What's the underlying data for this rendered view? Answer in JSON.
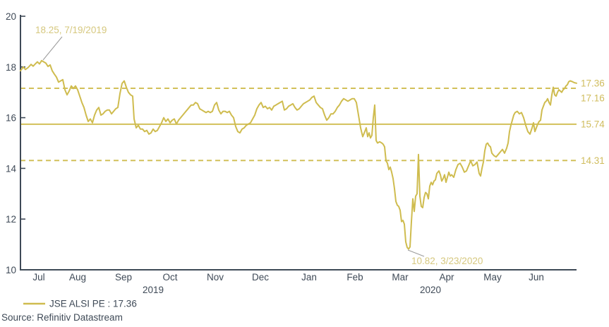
{
  "legend": {
    "label": "JSE ALSI PE : 17.36"
  },
  "source": "Source: Refinitiv Datastream",
  "colors": {
    "line": "#cfbc4f",
    "reference_line": "#d2c05a",
    "right_labels": "#d0bd5e",
    "annotation_text": "#d6c87f",
    "axis": "#3f4a57",
    "callout": "#9b9b9b",
    "background": "#ffffff"
  },
  "chart_data": {
    "type": "line",
    "series_name": "JSE ALSI PE",
    "current_value": 17.36,
    "x_range": [
      "Jul 2019",
      "Jun 2020"
    ],
    "ylim": [
      10,
      20
    ],
    "grid": false,
    "legend_position": "bottom-left",
    "y_axis": {
      "ticks": [
        "20",
        "18",
        "16",
        "14",
        "12",
        "10"
      ]
    },
    "x_axis": {
      "months": [
        "Jul",
        "Aug",
        "Sep",
        "Oct",
        "Nov",
        "Dec",
        "Jan",
        "Feb",
        "Mar",
        "Apr",
        "May",
        "Jun"
      ],
      "years": [
        "2019",
        "2020"
      ]
    },
    "reference_lines": [
      {
        "label": "17.16",
        "value": 17.16,
        "style": "dashed"
      },
      {
        "label": "15.74",
        "value": 15.74,
        "style": "solid"
      },
      {
        "label": "14.31",
        "value": 14.31,
        "style": "dashed"
      }
    ],
    "current_label": "17.36",
    "annotations": [
      {
        "text": "18.25, 7/19/2019",
        "value": 18.25,
        "date": "7/19/2019"
      },
      {
        "text": "10.82, 3/23/2020",
        "value": 10.82,
        "date": "3/23/2020"
      }
    ],
    "points": [
      [
        0,
        17.85
      ],
      [
        0.0051,
        18.0
      ],
      [
        0.0089,
        17.9
      ],
      [
        0.014,
        17.98
      ],
      [
        0.019,
        18.1
      ],
      [
        0.0228,
        18.03
      ],
      [
        0.0266,
        18.12
      ],
      [
        0.0305,
        18.2
      ],
      [
        0.0343,
        18.12
      ],
      [
        0.0381,
        18.25
      ],
      [
        0.0419,
        18.2
      ],
      [
        0.0457,
        18.15
      ],
      [
        0.0495,
        18.02
      ],
      [
        0.0533,
        18.08
      ],
      [
        0.0571,
        17.85
      ],
      [
        0.0609,
        17.72
      ],
      [
        0.0647,
        17.6
      ],
      [
        0.0685,
        17.4
      ],
      [
        0.0723,
        17.45
      ],
      [
        0.0761,
        17.5
      ],
      [
        0.0799,
        17.1
      ],
      [
        0.0838,
        16.9
      ],
      [
        0.0876,
        17.05
      ],
      [
        0.0914,
        17.25
      ],
      [
        0.0952,
        17.15
      ],
      [
        0.099,
        17.25
      ],
      [
        0.1028,
        17.1
      ],
      [
        0.1066,
        16.85
      ],
      [
        0.1104,
        16.6
      ],
      [
        0.1142,
        16.4
      ],
      [
        0.118,
        16.1
      ],
      [
        0.1218,
        15.85
      ],
      [
        0.1256,
        15.95
      ],
      [
        0.1294,
        15.8
      ],
      [
        0.1332,
        16.1
      ],
      [
        0.1371,
        16.3
      ],
      [
        0.1409,
        16.4
      ],
      [
        0.1447,
        16.1
      ],
      [
        0.1485,
        16.15
      ],
      [
        0.1523,
        16.25
      ],
      [
        0.1561,
        16.3
      ],
      [
        0.1599,
        16.3
      ],
      [
        0.1637,
        16.15
      ],
      [
        0.1675,
        16.25
      ],
      [
        0.1713,
        16.35
      ],
      [
        0.1751,
        16.4
      ],
      [
        0.1789,
        16.95
      ],
      [
        0.1827,
        17.35
      ],
      [
        0.1865,
        17.45
      ],
      [
        0.1904,
        17.2
      ],
      [
        0.1942,
        17.0
      ],
      [
        0.198,
        16.9
      ],
      [
        0.2018,
        16.85
      ],
      [
        0.2043,
        15.95
      ],
      [
        0.2081,
        15.6
      ],
      [
        0.2119,
        15.7
      ],
      [
        0.2157,
        15.55
      ],
      [
        0.2195,
        15.55
      ],
      [
        0.2234,
        15.45
      ],
      [
        0.2272,
        15.5
      ],
      [
        0.231,
        15.35
      ],
      [
        0.2348,
        15.4
      ],
      [
        0.2386,
        15.55
      ],
      [
        0.2424,
        15.45
      ],
      [
        0.2462,
        15.5
      ],
      [
        0.25,
        15.65
      ],
      [
        0.2538,
        15.8
      ],
      [
        0.2576,
        16.0
      ],
      [
        0.2614,
        15.85
      ],
      [
        0.2652,
        15.95
      ],
      [
        0.269,
        15.8
      ],
      [
        0.2728,
        15.9
      ],
      [
        0.2766,
        15.95
      ],
      [
        0.2804,
        15.75
      ],
      [
        0.2843,
        15.9
      ],
      [
        0.2881,
        16.0
      ],
      [
        0.2919,
        16.1
      ],
      [
        0.2957,
        16.2
      ],
      [
        0.2995,
        16.3
      ],
      [
        0.3033,
        16.4
      ],
      [
        0.3071,
        16.5
      ],
      [
        0.3109,
        16.5
      ],
      [
        0.3147,
        16.6
      ],
      [
        0.3185,
        16.55
      ],
      [
        0.3223,
        16.35
      ],
      [
        0.3261,
        16.3
      ],
      [
        0.3299,
        16.25
      ],
      [
        0.3338,
        16.2
      ],
      [
        0.3376,
        16.25
      ],
      [
        0.3414,
        16.2
      ],
      [
        0.3452,
        16.25
      ],
      [
        0.349,
        16.5
      ],
      [
        0.3528,
        16.6
      ],
      [
        0.3566,
        16.3
      ],
      [
        0.3604,
        16.15
      ],
      [
        0.3642,
        16.25
      ],
      [
        0.368,
        16.25
      ],
      [
        0.3718,
        16.2
      ],
      [
        0.3756,
        16.25
      ],
      [
        0.3794,
        16.1
      ],
      [
        0.3832,
        16.0
      ],
      [
        0.3871,
        15.65
      ],
      [
        0.3909,
        15.45
      ],
      [
        0.3947,
        15.4
      ],
      [
        0.3985,
        15.55
      ],
      [
        0.4023,
        15.6
      ],
      [
        0.4061,
        15.7
      ],
      [
        0.4099,
        15.75
      ],
      [
        0.4137,
        15.8
      ],
      [
        0.4175,
        15.95
      ],
      [
        0.4213,
        16.1
      ],
      [
        0.4251,
        16.35
      ],
      [
        0.4289,
        16.5
      ],
      [
        0.4327,
        16.6
      ],
      [
        0.4365,
        16.4
      ],
      [
        0.4404,
        16.45
      ],
      [
        0.4442,
        16.35
      ],
      [
        0.448,
        16.4
      ],
      [
        0.4518,
        16.3
      ],
      [
        0.4556,
        16.45
      ],
      [
        0.4594,
        16.5
      ],
      [
        0.4632,
        16.55
      ],
      [
        0.467,
        16.6
      ],
      [
        0.4708,
        16.65
      ],
      [
        0.4746,
        16.3
      ],
      [
        0.4784,
        16.35
      ],
      [
        0.4822,
        16.45
      ],
      [
        0.486,
        16.5
      ],
      [
        0.4898,
        16.55
      ],
      [
        0.4937,
        16.4
      ],
      [
        0.4975,
        16.3
      ],
      [
        0.5013,
        16.35
      ],
      [
        0.5051,
        16.45
      ],
      [
        0.5089,
        16.55
      ],
      [
        0.5127,
        16.6
      ],
      [
        0.5165,
        16.65
      ],
      [
        0.5203,
        16.7
      ],
      [
        0.5241,
        16.8
      ],
      [
        0.5279,
        16.85
      ],
      [
        0.5317,
        16.6
      ],
      [
        0.5355,
        16.5
      ],
      [
        0.5393,
        16.4
      ],
      [
        0.5431,
        16.35
      ],
      [
        0.547,
        16.1
      ],
      [
        0.5508,
        15.9
      ],
      [
        0.5546,
        16.0
      ],
      [
        0.5584,
        16.15
      ],
      [
        0.5622,
        16.15
      ],
      [
        0.566,
        16.25
      ],
      [
        0.5698,
        16.4
      ],
      [
        0.5736,
        16.5
      ],
      [
        0.5774,
        16.65
      ],
      [
        0.5812,
        16.75
      ],
      [
        0.585,
        16.7
      ],
      [
        0.5888,
        16.65
      ],
      [
        0.5926,
        16.7
      ],
      [
        0.5964,
        16.75
      ],
      [
        0.6003,
        16.75
      ],
      [
        0.6041,
        16.6
      ],
      [
        0.6079,
        16.1
      ],
      [
        0.6117,
        15.6
      ],
      [
        0.6155,
        15.25
      ],
      [
        0.6193,
        15.45
      ],
      [
        0.6218,
        15.6
      ],
      [
        0.6244,
        15.25
      ],
      [
        0.6269,
        15.4
      ],
      [
        0.6294,
        15.2
      ],
      [
        0.632,
        15.3
      ],
      [
        0.6345,
        16.0
      ],
      [
        0.6371,
        16.5
      ],
      [
        0.6396,
        15.1
      ],
      [
        0.6421,
        15.0
      ],
      [
        0.6459,
        15.05
      ],
      [
        0.6497,
        15.0
      ],
      [
        0.6523,
        14.95
      ],
      [
        0.6548,
        14.85
      ],
      [
        0.6574,
        14.3
      ],
      [
        0.6599,
        14.2
      ],
      [
        0.6624,
        13.95
      ],
      [
        0.665,
        14.05
      ],
      [
        0.6675,
        13.85
      ],
      [
        0.6701,
        13.6
      ],
      [
        0.6726,
        13.2
      ],
      [
        0.6751,
        12.7
      ],
      [
        0.6777,
        12.55
      ],
      [
        0.6802,
        12.5
      ],
      [
        0.6827,
        12.35
      ],
      [
        0.6853,
        11.9
      ],
      [
        0.6878,
        11.95
      ],
      [
        0.6904,
        11.8
      ],
      [
        0.6929,
        11.1
      ],
      [
        0.6954,
        10.88
      ],
      [
        0.698,
        10.82
      ],
      [
        0.7005,
        10.9
      ],
      [
        0.703,
        11.9
      ],
      [
        0.7056,
        12.8
      ],
      [
        0.7081,
        12.3
      ],
      [
        0.7107,
        12.9
      ],
      [
        0.7132,
        13.0
      ],
      [
        0.7157,
        14.55
      ],
      [
        0.7183,
        12.9
      ],
      [
        0.7208,
        12.5
      ],
      [
        0.7234,
        12.45
      ],
      [
        0.7259,
        12.85
      ],
      [
        0.7284,
        13.05
      ],
      [
        0.731,
        13.0
      ],
      [
        0.7335,
        12.8
      ],
      [
        0.736,
        13.3
      ],
      [
        0.7386,
        13.45
      ],
      [
        0.7411,
        13.35
      ],
      [
        0.7437,
        13.5
      ],
      [
        0.7462,
        13.55
      ],
      [
        0.7487,
        13.8
      ],
      [
        0.7525,
        13.9
      ],
      [
        0.7551,
        13.75
      ],
      [
        0.7576,
        13.5
      ],
      [
        0.7601,
        13.6
      ],
      [
        0.7627,
        13.75
      ],
      [
        0.7652,
        13.45
      ],
      [
        0.7678,
        13.65
      ],
      [
        0.7703,
        13.85
      ],
      [
        0.7728,
        13.7
      ],
      [
        0.7754,
        13.75
      ],
      [
        0.7792,
        13.65
      ],
      [
        0.783,
        13.95
      ],
      [
        0.7868,
        14.15
      ],
      [
        0.7906,
        14.2
      ],
      [
        0.7944,
        14.05
      ],
      [
        0.7982,
        13.85
      ],
      [
        0.802,
        13.9
      ],
      [
        0.8058,
        14.1
      ],
      [
        0.8096,
        14.3
      ],
      [
        0.8134,
        14.1
      ],
      [
        0.8173,
        14.15
      ],
      [
        0.8211,
        14.25
      ],
      [
        0.8249,
        13.8
      ],
      [
        0.8274,
        13.7
      ],
      [
        0.8299,
        14.0
      ],
      [
        0.8325,
        14.25
      ],
      [
        0.835,
        14.7
      ],
      [
        0.8376,
        14.95
      ],
      [
        0.8401,
        15.0
      ],
      [
        0.8426,
        14.9
      ],
      [
        0.8452,
        14.85
      ],
      [
        0.8477,
        14.6
      ],
      [
        0.8515,
        14.5
      ],
      [
        0.8553,
        14.45
      ],
      [
        0.8591,
        14.55
      ],
      [
        0.8629,
        14.65
      ],
      [
        0.8668,
        14.75
      ],
      [
        0.8706,
        14.6
      ],
      [
        0.8744,
        14.8
      ],
      [
        0.8769,
        15.0
      ],
      [
        0.8794,
        15.45
      ],
      [
        0.882,
        15.7
      ],
      [
        0.8845,
        15.9
      ],
      [
        0.8871,
        16.1
      ],
      [
        0.8896,
        16.2
      ],
      [
        0.8934,
        16.25
      ],
      [
        0.8972,
        16.15
      ],
      [
        0.901,
        16.2
      ],
      [
        0.9048,
        16.0
      ],
      [
        0.9086,
        15.7
      ],
      [
        0.9124,
        15.45
      ],
      [
        0.9162,
        15.35
      ],
      [
        0.92,
        15.6
      ],
      [
        0.9226,
        15.8
      ],
      [
        0.9251,
        15.45
      ],
      [
        0.9277,
        15.6
      ],
      [
        0.9302,
        15.75
      ],
      [
        0.9327,
        15.85
      ],
      [
        0.9353,
        15.9
      ],
      [
        0.9378,
        16.3
      ],
      [
        0.9404,
        16.45
      ],
      [
        0.9429,
        16.6
      ],
      [
        0.9454,
        16.65
      ],
      [
        0.948,
        16.75
      ],
      [
        0.9505,
        16.6
      ],
      [
        0.9531,
        16.5
      ],
      [
        0.9556,
        16.9
      ],
      [
        0.9581,
        17.2
      ],
      [
        0.9607,
        16.9
      ],
      [
        0.9632,
        16.85
      ],
      [
        0.9657,
        17.0
      ],
      [
        0.9683,
        17.1
      ],
      [
        0.9708,
        17.05
      ],
      [
        0.9734,
        17.0
      ],
      [
        0.9759,
        17.1
      ],
      [
        0.9784,
        17.15
      ],
      [
        0.981,
        17.25
      ],
      [
        0.9835,
        17.3
      ],
      [
        0.9861,
        17.42
      ],
      [
        0.9886,
        17.45
      ],
      [
        0.9924,
        17.42
      ],
      [
        0.9962,
        17.38
      ],
      [
        1,
        17.36
      ]
    ]
  }
}
